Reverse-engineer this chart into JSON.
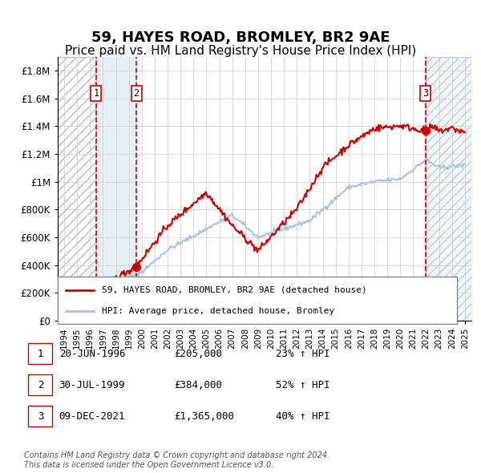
{
  "title": "59, HAYES ROAD, BROMLEY, BR2 9AE",
  "subtitle": "Price paid vs. HM Land Registry's House Price Index (HPI)",
  "title_fontsize": 13,
  "subtitle_fontsize": 11,
  "hpi_color": "#aac4dd",
  "price_color": "#cc0000",
  "marker_color": "#cc0000",
  "ylim": [
    0,
    1900000
  ],
  "yticks": [
    0,
    200000,
    400000,
    600000,
    800000,
    1000000,
    1200000,
    1400000,
    1600000,
    1800000
  ],
  "ytick_labels": [
    "£0",
    "£200K",
    "£400K",
    "£600K",
    "£800K",
    "£1M",
    "£1.2M",
    "£1.4M",
    "£1.6M",
    "£1.8M"
  ],
  "xlim_start": 1993.5,
  "xlim_end": 2025.5,
  "xticks": [
    1994,
    1995,
    1996,
    1997,
    1998,
    1999,
    2000,
    2001,
    2002,
    2003,
    2004,
    2005,
    2006,
    2007,
    2008,
    2009,
    2010,
    2011,
    2012,
    2013,
    2014,
    2015,
    2016,
    2017,
    2018,
    2019,
    2020,
    2021,
    2022,
    2023,
    2024,
    2025
  ],
  "purchases": [
    {
      "year": 1996.47,
      "price": 205000,
      "label": "1"
    },
    {
      "year": 1999.58,
      "price": 384000,
      "label": "2"
    },
    {
      "year": 2021.94,
      "price": 1365000,
      "label": "3"
    }
  ],
  "legend_entries": [
    {
      "label": "59, HAYES ROAD, BROMLEY, BR2 9AE (detached house)",
      "color": "#cc0000",
      "style": "solid"
    },
    {
      "label": "HPI: Average price, detached house, Bromley",
      "color": "#aac4dd",
      "style": "solid"
    }
  ],
  "table_rows": [
    {
      "num": "1",
      "date": "20-JUN-1996",
      "price": "£205,000",
      "change": "23% ↑ HPI"
    },
    {
      "num": "2",
      "date": "30-JUL-1999",
      "price": "£384,000",
      "change": "52% ↑ HPI"
    },
    {
      "num": "3",
      "date": "09-DEC-2021",
      "price": "£1,365,000",
      "change": "40% ↑ HPI"
    }
  ],
  "footnote1": "Contains HM Land Registry data © Crown copyright and database right 2024.",
  "footnote2": "This data is licensed under the Open Government Licence v3.0.",
  "hatch_left_start": 1993.5,
  "hatch_left_end": 1996.47,
  "hatch_right_start": 2021.94,
  "hatch_right_end": 2025.5,
  "shade1_start": 1996.47,
  "shade1_end": 1999.58,
  "shade2_start": 2021.94,
  "shade2_end": 2025.5,
  "vline_color": "#cc0000",
  "shade_color": "#dce9f3",
  "hatch_color": "#cccccc"
}
